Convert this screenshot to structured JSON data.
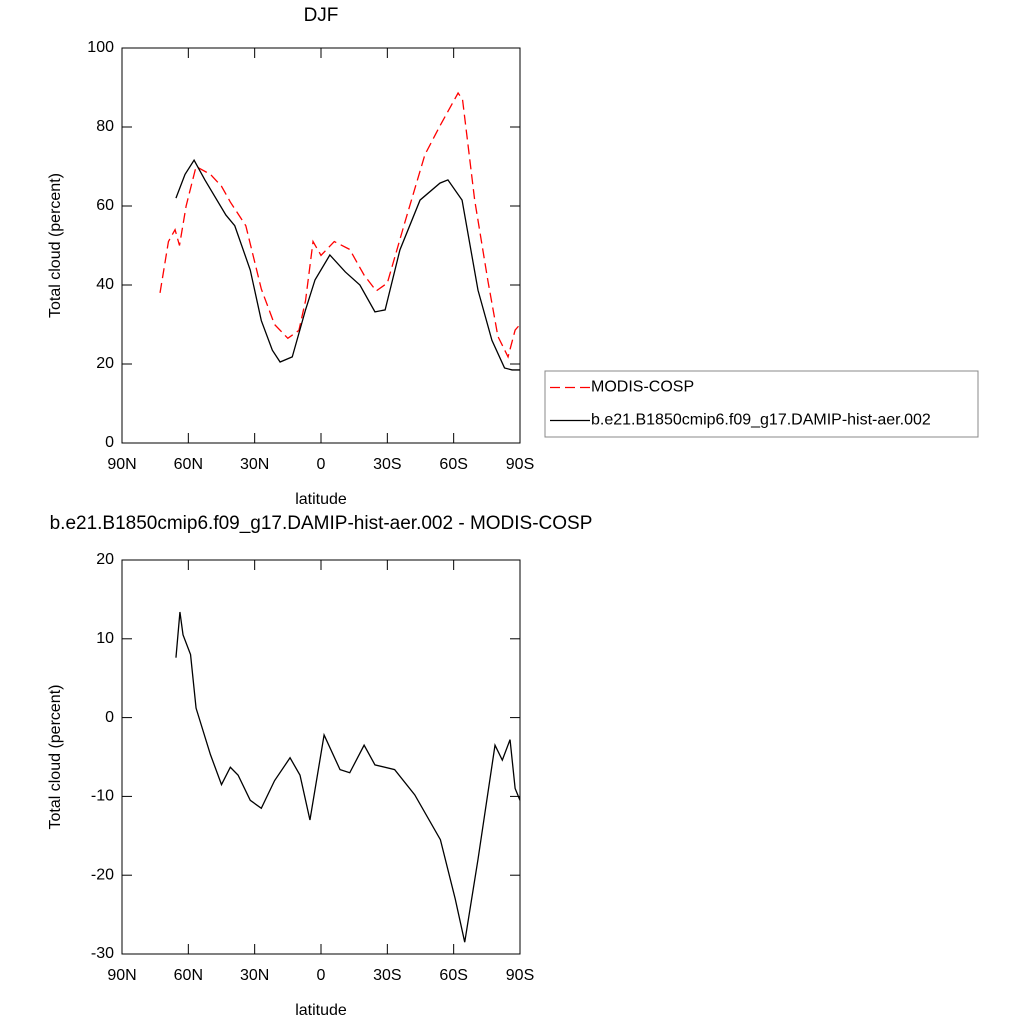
{
  "chart_data": [
    {
      "type": "line",
      "title": "DJF",
      "xlabel": "latitude",
      "ylabel": "Total cloud (percent)",
      "xlim": [
        90,
        -90
      ],
      "xticks": [
        {
          "value": 90,
          "label": "90N"
        },
        {
          "value": 60,
          "label": "60N"
        },
        {
          "value": 30,
          "label": "30N"
        },
        0,
        {
          "value": -30,
          "label": "30S"
        },
        {
          "value": -60,
          "label": "60S"
        },
        {
          "value": -90,
          "label": "90S"
        }
      ],
      "ylim": [
        0,
        100
      ],
      "yticks": [
        0,
        20,
        40,
        60,
        80,
        100
      ],
      "legend": "right",
      "series": [
        {
          "name": "MODIS-COSP",
          "color": "#ff0000",
          "style": "dashed",
          "x": [
            72.8,
            69,
            66,
            64,
            61,
            56.5,
            50,
            45,
            41,
            34,
            27,
            21,
            15,
            10,
            7,
            3.6,
            0,
            -6,
            -13,
            -19.5,
            -25,
            -30,
            -38,
            -47,
            -54,
            -62,
            -64,
            -69.5,
            -75.5,
            -80,
            -84.6,
            -87.8,
            -90
          ],
          "values": [
            38,
            51,
            54,
            50,
            60,
            70,
            68,
            65,
            61,
            55,
            39,
            30,
            26.5,
            28.5,
            36,
            51,
            47.5,
            51,
            49,
            42.5,
            38.5,
            40.5,
            56,
            73,
            80.5,
            88.6,
            87,
            61.5,
            41,
            27,
            21.8,
            28.6,
            30
          ]
        },
        {
          "name": "b.e21.B1850cmip6.f09_g17.DAMIP-hist-aer.002",
          "color": "#000000",
          "style": "solid",
          "x": [
            65.6,
            61.5,
            57.4,
            52.5,
            43,
            39,
            32,
            27,
            22,
            18.5,
            13,
            7,
            2.7,
            -4,
            -11,
            -17.6,
            -24.4,
            -29,
            -35.7,
            -44.8,
            -53.8,
            -57.4,
            -63.8,
            -71,
            -77.3,
            -83,
            -86.4,
            -90
          ],
          "values": [
            62,
            68,
            71.6,
            66.6,
            57.7,
            55,
            43.8,
            31,
            23.5,
            20.5,
            21.8,
            33.7,
            41.3,
            47.6,
            43.3,
            40,
            33.2,
            33.7,
            48.9,
            61.5,
            65.8,
            66.6,
            61.5,
            38.7,
            26,
            19,
            18.5,
            18.5
          ]
        }
      ]
    },
    {
      "type": "line",
      "title": "b.e21.B1850cmip6.f09_g17.DAMIP-hist-aer.002 - MODIS-COSP",
      "xlabel": "latitude",
      "ylabel": "Total cloud (percent)",
      "xlim": [
        90,
        -90
      ],
      "xticks": [
        {
          "value": 90,
          "label": "90N"
        },
        {
          "value": 60,
          "label": "60N"
        },
        {
          "value": 30,
          "label": "30N"
        },
        0,
        {
          "value": -30,
          "label": "30S"
        },
        {
          "value": -60,
          "label": "60S"
        },
        {
          "value": -90,
          "label": "90S"
        }
      ],
      "ylim": [
        -30,
        20
      ],
      "yticks": [
        -30,
        -20,
        -10,
        0,
        10,
        20
      ],
      "series": [
        {
          "color": "#000000",
          "style": "solid",
          "x": [
            65.6,
            63.8,
            62.4,
            59,
            56.5,
            50,
            45,
            41,
            37.5,
            32,
            27,
            21,
            14,
            9.5,
            5,
            -1.4,
            -8.6,
            -13,
            -19.5,
            -24.4,
            -33.3,
            -42.4,
            -54,
            -60.7,
            -65,
            -71,
            -78.7,
            -82,
            -85.5,
            -87.8,
            -90
          ],
          "values": [
            7.6,
            13.4,
            10.5,
            8,
            1.2,
            -4.7,
            -8.5,
            -6.3,
            -7.3,
            -10.5,
            -11.5,
            -8,
            -5.1,
            -7.3,
            -13,
            -2.2,
            -6.6,
            -7,
            -3.5,
            -6,
            -6.6,
            -9.8,
            -15.5,
            -23,
            -28.5,
            -18,
            -3.5,
            -5.4,
            -2.8,
            -9,
            -10.5
          ]
        }
      ]
    }
  ]
}
